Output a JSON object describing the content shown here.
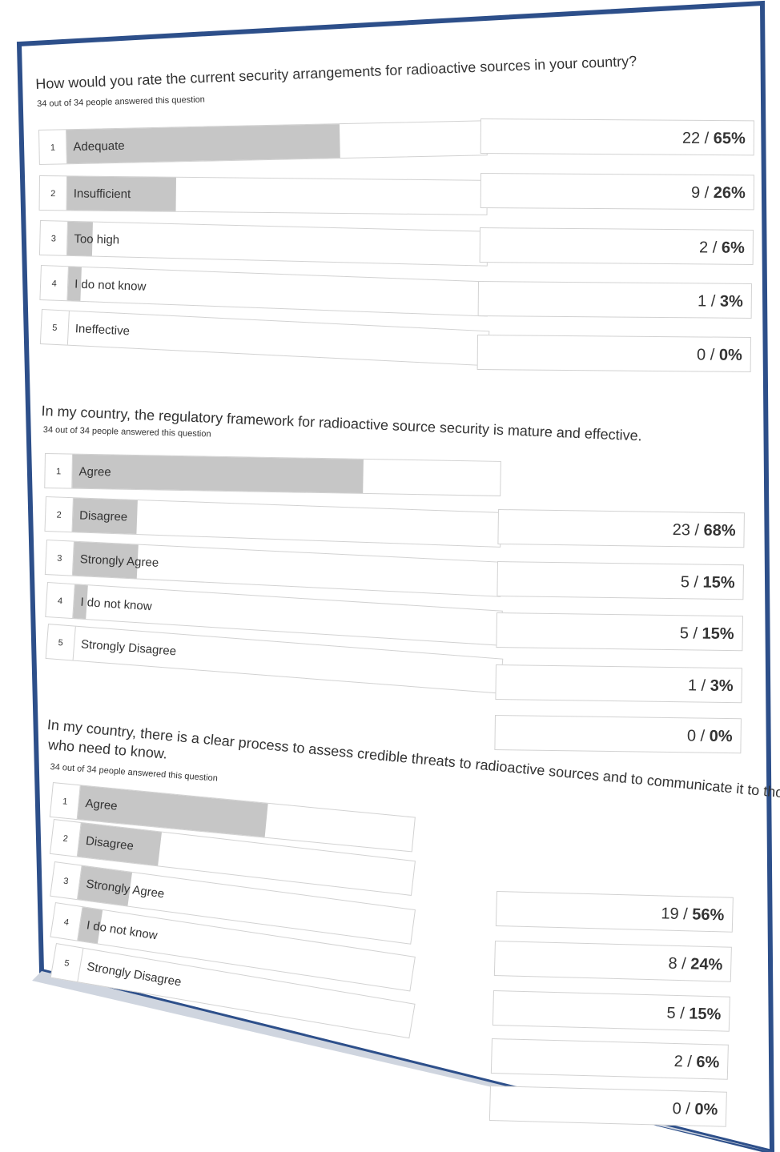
{
  "colors": {
    "frame": "#2d4f8a",
    "bar": "#c6c6c6",
    "border": "#d2d2d2",
    "text": "#333333"
  },
  "questions": [
    {
      "title": "How would you rate the current security arrangements for radioactive sources in your country?",
      "title_line2": "",
      "answered": "34 out of 34 people answered this question",
      "rows": [
        {
          "index": "1",
          "label": "Adequate",
          "percent": 65
        },
        {
          "index": "2",
          "label": "Insufficient",
          "percent": 26
        },
        {
          "index": "3",
          "label": "Too high",
          "percent": 6
        },
        {
          "index": "4",
          "label": "I do not know",
          "percent": 3
        },
        {
          "index": "5",
          "label": "Ineffective",
          "percent": 0
        }
      ],
      "stats": [
        {
          "count": "22",
          "pct": "65%"
        },
        {
          "count": "9",
          "pct": "26%"
        },
        {
          "count": "2",
          "pct": "6%"
        },
        {
          "count": "1",
          "pct": "3%"
        },
        {
          "count": "0",
          "pct": "0%"
        }
      ]
    },
    {
      "title": "In my country, the regulatory framework for radioactive source security is mature and effective.",
      "title_line2": "",
      "answered": "34 out of 34 people answered this question",
      "rows": [
        {
          "index": "1",
          "label": "Agree",
          "percent": 68
        },
        {
          "index": "2",
          "label": "Disagree",
          "percent": 15
        },
        {
          "index": "3",
          "label": "Strongly Agree",
          "percent": 15
        },
        {
          "index": "4",
          "label": "I do not know",
          "percent": 3
        },
        {
          "index": "5",
          "label": "Strongly Disagree",
          "percent": 0
        }
      ],
      "stats": [
        {
          "count": "23",
          "pct": "68%"
        },
        {
          "count": "5",
          "pct": "15%"
        },
        {
          "count": "5",
          "pct": "15%"
        },
        {
          "count": "1",
          "pct": "3%"
        },
        {
          "count": "0",
          "pct": "0%"
        }
      ]
    },
    {
      "title": "In my country, there is a clear process to assess credible threats to radioactive sources and to communicate it to those",
      "title_line2": "who need to know.",
      "answered": "34 out of 34 people answered this question",
      "rows": [
        {
          "index": "1",
          "label": "Agree",
          "percent": 56
        },
        {
          "index": "2",
          "label": "Disagree",
          "percent": 24
        },
        {
          "index": "3",
          "label": "Strongly Agree",
          "percent": 15
        },
        {
          "index": "4",
          "label": "I do not know",
          "percent": 6
        },
        {
          "index": "5",
          "label": "Strongly Disagree",
          "percent": 0
        }
      ],
      "stats": [
        {
          "count": "19",
          "pct": "56%"
        },
        {
          "count": "8",
          "pct": "24%"
        },
        {
          "count": "5",
          "pct": "15%"
        },
        {
          "count": "2",
          "pct": "6%"
        },
        {
          "count": "0",
          "pct": "0%"
        }
      ]
    }
  ]
}
